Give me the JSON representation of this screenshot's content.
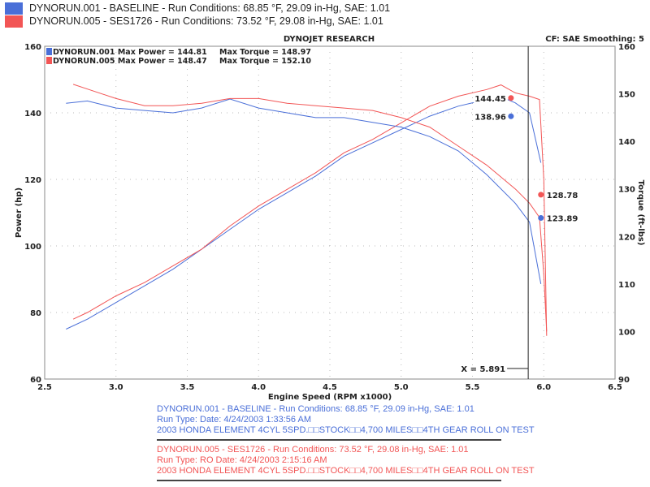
{
  "header": {
    "runs": [
      {
        "label": "DYNORUN.001 - BASELINE  -  Run Conditions: 68.85 °F, 29.09 in-Hg, SAE: 1.01",
        "color": "#4a6fd8"
      },
      {
        "label": "DYNORUN.005 - SES1726 -  Run Conditions: 73.52 °F, 29.08 in-Hg, SAE: 1.01",
        "color": "#f25555"
      }
    ]
  },
  "chart_data": {
    "type": "line",
    "title": "DYNOJET RESEARCH",
    "subtitle": "CF: SAE  Smoothing: 5",
    "xlabel": "Engine Speed (RPM x1000)",
    "ylabel": "Power (hp)",
    "y2label": "Torque (ft-lbs)",
    "xlim": [
      2.5,
      6.5
    ],
    "ylim": [
      60,
      160
    ],
    "y2lim": [
      90,
      160
    ],
    "xticks": [
      "2.5",
      "3.0",
      "3.5",
      "4.0",
      "4.5",
      "5.0",
      "5.5",
      "6.0",
      "6.5"
    ],
    "yticks": [
      "60",
      "80",
      "100",
      "120",
      "140",
      "160"
    ],
    "y2ticks": [
      "90",
      "100",
      "110",
      "120",
      "130",
      "140",
      "150",
      "160"
    ],
    "grid": true,
    "legend": {
      "placement": "top-left",
      "entries": [
        {
          "text": "DYNORUN.001 Max Power = 144.81",
          "torque": "Max Torque = 148.97",
          "color": "#4a6fd8"
        },
        {
          "text": "DYNORUN.005 Max Power = 148.47",
          "torque": "Max Torque = 152.10",
          "color": "#f25555"
        }
      ]
    },
    "cursor": {
      "x": 5.891,
      "label": "X = 5.891"
    },
    "markers": [
      {
        "x": 5.77,
        "value": 144.45,
        "label": "144.45",
        "axis": "power",
        "color": "#f25555"
      },
      {
        "x": 5.77,
        "value": 138.96,
        "label": "138.96",
        "axis": "power",
        "color": "#4a6fd8"
      },
      {
        "x": 5.98,
        "value": 128.78,
        "label": "128.78",
        "axis": "torque",
        "color": "#f25555"
      },
      {
        "x": 5.98,
        "value": 123.89,
        "label": "123.89",
        "axis": "torque",
        "color": "#4a6fd8"
      }
    ],
    "series": [
      {
        "name": "DYNORUN.001 Power",
        "axis": "power",
        "color": "#4a6fd8",
        "x": [
          2.65,
          2.8,
          3.0,
          3.2,
          3.4,
          3.6,
          3.8,
          4.0,
          4.2,
          4.4,
          4.6,
          4.8,
          5.0,
          5.2,
          5.4,
          5.6,
          5.7,
          5.8,
          5.9,
          5.98
        ],
        "y": [
          75,
          78,
          83,
          88,
          93,
          99,
          105,
          111,
          116,
          121,
          127,
          131,
          135,
          139,
          142,
          144,
          144.8,
          143,
          140,
          125
        ]
      },
      {
        "name": "DYNORUN.005 Power",
        "axis": "power",
        "color": "#f25555",
        "x": [
          2.7,
          2.8,
          3.0,
          3.2,
          3.4,
          3.6,
          3.8,
          4.0,
          4.2,
          4.4,
          4.6,
          4.8,
          5.0,
          5.2,
          5.4,
          5.6,
          5.7,
          5.8,
          5.9,
          5.97,
          6.0,
          6.02
        ],
        "y": [
          78,
          80,
          85,
          89,
          94,
          99,
          106,
          112,
          117,
          122,
          128,
          132,
          137,
          142,
          145,
          147,
          148.4,
          146,
          145,
          144,
          120,
          73
        ]
      },
      {
        "name": "DYNORUN.001 Torque",
        "axis": "torque",
        "color": "#4a6fd8",
        "x": [
          2.65,
          2.8,
          3.0,
          3.2,
          3.4,
          3.6,
          3.8,
          4.0,
          4.2,
          4.4,
          4.6,
          4.8,
          5.0,
          5.2,
          5.4,
          5.6,
          5.8,
          5.9,
          5.98
        ],
        "y": [
          148,
          148.5,
          147,
          146.5,
          146,
          147,
          148.9,
          147,
          146,
          145,
          145,
          144,
          143,
          141,
          138,
          133,
          127,
          123,
          110
        ]
      },
      {
        "name": "DYNORUN.005 Torque",
        "axis": "torque",
        "color": "#f25555",
        "x": [
          2.7,
          2.8,
          3.0,
          3.2,
          3.4,
          3.6,
          3.8,
          4.0,
          4.2,
          4.4,
          4.6,
          4.8,
          5.0,
          5.2,
          5.4,
          5.6,
          5.8,
          5.9,
          5.97,
          6.0,
          6.02
        ],
        "y": [
          152,
          151,
          149,
          147.5,
          147.5,
          148,
          149,
          149,
          148,
          147.5,
          147,
          146.5,
          145,
          143,
          139,
          135,
          130,
          127,
          124,
          112,
          100
        ]
      }
    ]
  },
  "footer": {
    "run1": {
      "line1": "DYNORUN.001 - BASELINE  -  Run Conditions: 68.85 °F, 29.09 in-Hg, SAE: 1.01",
      "line2": "Run Type:   Date: 4/24/2003 1:33:56 AM",
      "line3": "2003 HONDA ELEMENT 4CYL 5SPD.□□STOCK□□4,700 MILES□□4TH GEAR ROLL ON TEST",
      "color": "#4a6fd8"
    },
    "run2": {
      "line1": "DYNORUN.005 - SES1726 -  Run Conditions: 73.52 °F, 29.08 in-Hg, SAE: 1.01",
      "line2": "Run Type: RO  Date: 4/24/2003 2:15:16 AM",
      "line3": "2003 HONDA ELEMENT 4CYL 5SPD.□□STOCK□□4,700 MILES□□4TH GEAR ROLL ON TEST",
      "color": "#f25555"
    }
  }
}
